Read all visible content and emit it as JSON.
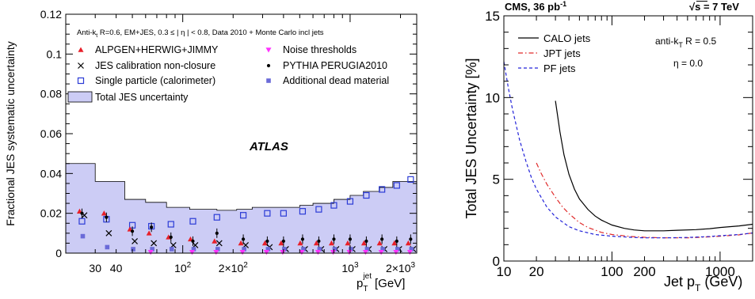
{
  "chart_data": [
    {
      "type": "scatter",
      "scale": {
        "x": "log",
        "y": "linear"
      },
      "xlim": [
        20,
        2500
      ],
      "ylim": [
        0,
        0.12
      ],
      "ylabel": "Fractional JES systematic uncertainty",
      "xlabel": "p_T^jet [GeV]",
      "xlabel_parts": {
        "main": "p",
        "sub": "T",
        "sup": "jet",
        "unit": "[GeV]"
      },
      "yticks": [
        "0",
        "0.02",
        "0.04",
        "0.06",
        "0.08",
        "0.1",
        "0.12"
      ],
      "ytick_values": [
        0,
        0.02,
        0.04,
        0.06,
        0.08,
        0.1,
        0.12
      ],
      "xticks": [
        "30",
        "40",
        "10",
        "2×10",
        "10",
        "2×10"
      ],
      "xtick_values": [
        30,
        40,
        100,
        200,
        1000,
        2000
      ],
      "xtick_sups": [
        "",
        "",
        "2",
        "2",
        "3",
        "3"
      ],
      "header": "Anti-k_t R=0.6, EM+JES, 0.3 ≤ | η | < 0.8, Data 2010 + Monte Carlo incl jets",
      "header_parts": {
        "pre": "Anti-k",
        "sub": "t",
        "post": " R=0.6, EM+JES, 0.3 ≤ | η | < 0.8, Data 2010 + Monte Carlo incl jets"
      },
      "annotation": "ATLAS",
      "legend": [
        {
          "label": "ALPGEN+HERWIG+JIMMY",
          "marker": "triangle",
          "color": "#e8202a"
        },
        {
          "label": "Noise thresholds",
          "marker": "triangle-down",
          "color": "#ff33ff"
        },
        {
          "label": "JES calibration non-closure",
          "marker": "cross",
          "color": "#000000"
        },
        {
          "label": "PYTHIA PERUGIA2010",
          "marker": "dot",
          "color": "#000000"
        },
        {
          "label": "Single particle (calorimeter)",
          "marker": "open-square",
          "color": "#2b3bd6"
        },
        {
          "label": "Additional dead material",
          "marker": "square",
          "color": "#6a6ad8"
        },
        {
          "label": "Total JES uncertainty",
          "marker": "band",
          "color": "#ccccf5"
        }
      ],
      "total_band": {
        "edges": [
          20,
          30,
          45,
          60,
          80,
          110,
          160,
          210,
          260,
          310,
          400,
          500,
          600,
          800,
          1000,
          1200,
          1500,
          1800,
          2500
        ],
        "values": [
          0.045,
          0.036,
          0.027,
          0.0255,
          0.023,
          0.022,
          0.0215,
          0.022,
          0.023,
          0.023,
          0.023,
          0.024,
          0.025,
          0.027,
          0.029,
          0.031,
          0.033,
          0.036
        ]
      },
      "series": [
        {
          "name": "Single particle (calorimeter)",
          "marker": "open-square",
          "color": "#2b3bd6",
          "x": [
            25,
            35,
            50,
            65,
            85,
            115,
            160,
            230,
            320,
            400,
            520,
            650,
            800,
            1000,
            1250,
            1550,
            1900,
            2300
          ],
          "y": [
            0.016,
            0.017,
            0.014,
            0.0135,
            0.0145,
            0.016,
            0.018,
            0.019,
            0.02,
            0.02,
            0.021,
            0.022,
            0.024,
            0.026,
            0.029,
            0.032,
            0.034,
            0.037
          ]
        },
        {
          "name": "ALPGEN+HERWIG+JIMMY",
          "marker": "triangle",
          "color": "#e8202a",
          "x": [
            25,
            35,
            50,
            65,
            85,
            115,
            160,
            230,
            320,
            400,
            520,
            650,
            800,
            1000,
            1250,
            1550,
            1900,
            2300
          ],
          "y": [
            0.021,
            0.02,
            0.012,
            0.01,
            0.008,
            0.007,
            0.006,
            0.005,
            0.005,
            0.005,
            0.005,
            0.005,
            0.005,
            0.005,
            0.005,
            0.005,
            0.005,
            0.005
          ]
        },
        {
          "name": "JES calibration non-closure",
          "marker": "cross",
          "color": "#000000",
          "x": [
            25,
            35,
            50,
            65,
            85,
            115,
            160,
            230,
            320,
            400,
            520,
            650,
            800,
            1000,
            1250,
            1550,
            1900,
            2300
          ],
          "y": [
            0.019,
            0.01,
            0.006,
            0.005,
            0.004,
            0.004,
            0.005,
            0.004,
            0.003,
            0.002,
            0.002,
            0.002,
            0.002,
            0.002,
            0.002,
            0.002,
            0.002,
            0.002
          ]
        },
        {
          "name": "PYTHIA PERUGIA2010",
          "marker": "dot",
          "color": "#000000",
          "x": [
            25,
            35,
            50,
            65,
            85,
            115,
            160,
            230,
            320,
            400,
            520,
            650,
            800,
            1000,
            1250,
            1550,
            1900,
            2300
          ],
          "y": [
            0.02,
            0.018,
            0.011,
            0.013,
            0.008,
            0.006,
            0.01,
            0.007,
            0.006,
            0.006,
            0.007,
            0.006,
            0.007,
            0.007,
            0.006,
            0.007,
            0.006,
            0.007
          ]
        },
        {
          "name": "Additional dead material",
          "marker": "square",
          "color": "#6a6ad8",
          "x": [
            25,
            35,
            50,
            65,
            85,
            115,
            160,
            230,
            320,
            400,
            520,
            650,
            800,
            1000,
            1250,
            1550,
            1900,
            2300
          ],
          "y": [
            0.0085,
            0.003,
            0.002,
            0.002,
            0.002,
            0.002,
            0.002,
            0.002,
            0.002,
            0.002,
            0.002,
            0.002,
            0.002,
            0.002,
            0.002,
            0.002,
            0.002,
            0.002
          ]
        },
        {
          "name": "Noise thresholds",
          "marker": "triangle-down",
          "color": "#ff33ff",
          "x": [
            65,
            115,
            160,
            230,
            320,
            400,
            520,
            650,
            800,
            1000,
            1250,
            1550,
            1900,
            2300
          ],
          "y": [
            0.0005,
            0.0005,
            0.0005,
            0.0005,
            0.0005,
            0.0005,
            0.0005,
            0.0005,
            0.0005,
            0.0005,
            0.0005,
            0.0005,
            0.0005,
            0.0005
          ]
        }
      ]
    },
    {
      "type": "line",
      "scale": {
        "x": "log",
        "y": "linear"
      },
      "xlim": [
        10,
        2000
      ],
      "ylim": [
        0,
        15
      ],
      "ylabel": "Total JES Uncertainty [%]",
      "xlabel": "Jet p_T (GeV)",
      "xlabel_parts": {
        "main": "Jet p",
        "sub": "T",
        "unit": " (GeV)"
      },
      "yticks": [
        "0",
        "5",
        "10",
        "15"
      ],
      "ytick_values": [
        0,
        5,
        10,
        15
      ],
      "xticks": [
        "10",
        "20",
        "100",
        "200",
        "1000"
      ],
      "xtick_values": [
        10,
        20,
        100,
        200,
        1000
      ],
      "title_left": "CMS, 36 pb",
      "title_left_sup": "-1",
      "title_right": "s = 7 TeV",
      "title_right_prefix": "√",
      "annotation_1": "anti-k_T R = 0.5",
      "annotation_1_parts": {
        "pre": "anti-k",
        "sub": "T",
        "post": " R = 0.5"
      },
      "annotation_2": "η = 0.0",
      "series": [
        {
          "name": "CALO jets",
          "color": "#000000",
          "dash": "solid",
          "x": [
            30,
            33,
            36,
            40,
            45,
            50,
            60,
            70,
            80,
            100,
            130,
            160,
            200,
            300,
            400,
            600,
            800,
            1000,
            1500,
            2000
          ],
          "y": [
            9.8,
            7.9,
            6.5,
            5.3,
            4.4,
            3.8,
            3.15,
            2.75,
            2.5,
            2.2,
            2.0,
            1.9,
            1.85,
            1.85,
            1.88,
            1.92,
            1.98,
            2.05,
            2.15,
            2.25
          ]
        },
        {
          "name": "JPT jets",
          "color": "#e02a2a",
          "dash": "dashdot",
          "x": [
            20,
            22,
            25,
            30,
            35,
            40,
            50,
            60,
            80,
            100,
            150,
            200,
            300,
            500,
            800,
            1000,
            1500,
            2000
          ],
          "y": [
            6.0,
            5.4,
            4.7,
            3.9,
            3.3,
            2.9,
            2.35,
            2.05,
            1.75,
            1.62,
            1.5,
            1.45,
            1.42,
            1.42,
            1.48,
            1.52,
            1.6,
            1.72
          ]
        },
        {
          "name": "PF jets",
          "color": "#2323d9",
          "dash": "dashed",
          "x": [
            10,
            11,
            12,
            14,
            16,
            18,
            20,
            25,
            30,
            40,
            50,
            70,
            100,
            150,
            200,
            300,
            500,
            800,
            1000,
            1500,
            2000
          ],
          "y": [
            12.2,
            10.6,
            9.3,
            7.4,
            6.1,
            5.1,
            4.4,
            3.3,
            2.7,
            2.1,
            1.85,
            1.62,
            1.52,
            1.45,
            1.42,
            1.42,
            1.44,
            1.5,
            1.55,
            1.62,
            1.72
          ]
        }
      ]
    }
  ]
}
